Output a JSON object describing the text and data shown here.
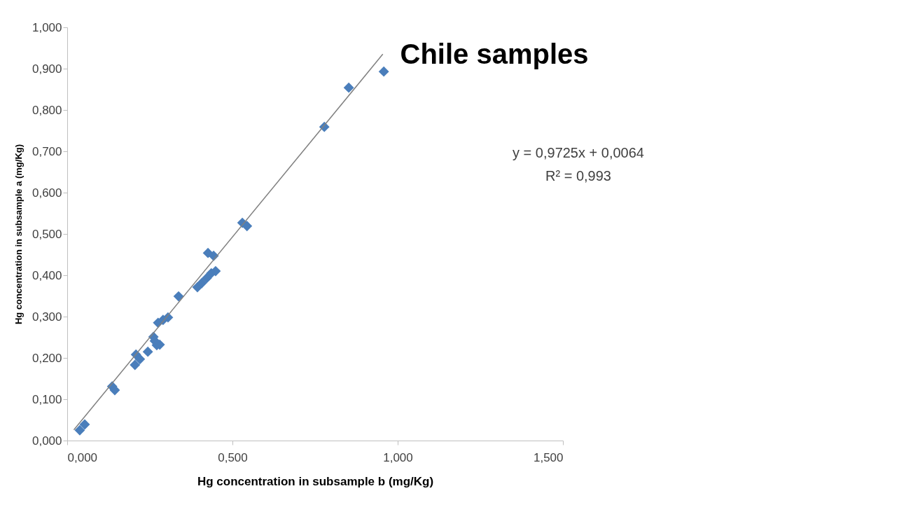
{
  "chart_data": {
    "type": "scatter",
    "title": "Chile samples",
    "xlabel": "Hg concentration in subsample b (mg/Kg)",
    "ylabel": "Hg concentration in subsample a (mg/Kg)",
    "annotations": [
      "y = 0,9725x + 0,0064",
      "R² = 0,993"
    ],
    "marker": "diamond",
    "grid": false,
    "xlim": [
      0,
      1.5
    ],
    "ylim": [
      0,
      1.0
    ],
    "xticks": [
      {
        "value": 0,
        "label": "0,000"
      },
      {
        "value": 0.5,
        "label": "0,500"
      },
      {
        "value": 1.0,
        "label": "1,000"
      },
      {
        "value": 1.5,
        "label": "1,500"
      }
    ],
    "yticks": [
      {
        "value": 0,
        "label": "0,000"
      },
      {
        "value": 0.1,
        "label": "0,100"
      },
      {
        "value": 0.2,
        "label": "0,200"
      },
      {
        "value": 0.3,
        "label": "0,300"
      },
      {
        "value": 0.4,
        "label": "0,400"
      },
      {
        "value": 0.5,
        "label": "0,500"
      },
      {
        "value": 0.6,
        "label": "0,600"
      },
      {
        "value": 0.7,
        "label": "0,700"
      },
      {
        "value": 0.8,
        "label": "0,800"
      },
      {
        "value": 0.9,
        "label": "0,900"
      },
      {
        "value": 1.0,
        "label": "1,000"
      }
    ],
    "series": [
      {
        "color": "#4a7ebb",
        "x": [
          0.038,
          0.053,
          0.136,
          0.144,
          0.208,
          0.205,
          0.22,
          0.244,
          0.261,
          0.271,
          0.28,
          0.265,
          0.275,
          0.29,
          0.305,
          0.337,
          0.394,
          0.407,
          0.422,
          0.436,
          0.449,
          0.426,
          0.443,
          0.53,
          0.544,
          0.778,
          0.852,
          0.958
        ],
        "values": [
          0.025,
          0.039,
          0.131,
          0.122,
          0.208,
          0.183,
          0.197,
          0.215,
          0.251,
          0.231,
          0.232,
          0.241,
          0.285,
          0.292,
          0.298,
          0.349,
          0.371,
          0.381,
          0.393,
          0.405,
          0.41,
          0.454,
          0.447,
          0.527,
          0.519,
          0.759,
          0.854,
          0.893
        ]
      },
      {
        "type": "line",
        "marker": "none",
        "color": "#808080",
        "x": [
          0.02,
          0.955
        ],
        "values": [
          0.026,
          0.935
        ]
      }
    ]
  }
}
